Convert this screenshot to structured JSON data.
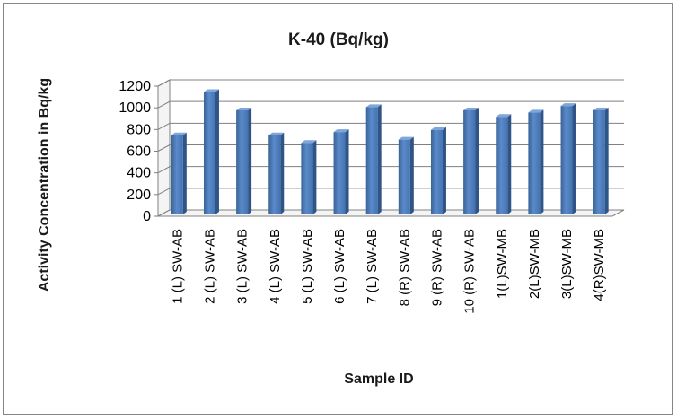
{
  "chart_data": {
    "type": "bar",
    "title": "K-40 (Bq/kg)",
    "xlabel": "Sample ID",
    "ylabel": "Activity Concentration in Bq/kg",
    "ylim": [
      0,
      1200
    ],
    "yticks": [
      0,
      200,
      400,
      600,
      800,
      1000,
      1200
    ],
    "grid": true,
    "legend": "none",
    "bar_color": "#4F81BD",
    "categories": [
      "1 (L) SW-AB",
      "2 (L) SW-AB",
      "3 (L) SW-AB",
      "4 (L) SW-AB",
      "5 (L) SW-AB",
      "6 (L) SW-AB",
      "7 (L) SW-AB",
      "8 (R) SW-AB",
      "9 (R) SW-AB",
      "10 (R) SW-AB",
      "1(L)SW-MB",
      "2(L)SW-MB",
      "3(L)SW-MB",
      "4(R)SW-MB"
    ],
    "values": [
      730,
      1130,
      960,
      730,
      660,
      760,
      990,
      690,
      780,
      960,
      900,
      940,
      1000,
      960
    ]
  }
}
